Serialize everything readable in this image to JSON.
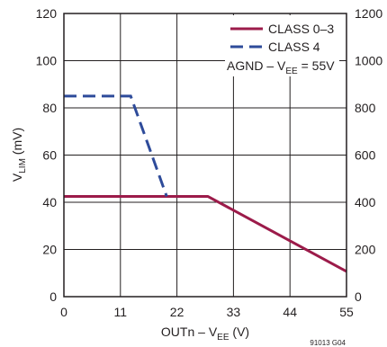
{
  "chart_data": {
    "type": "line",
    "xlabel": "OUTn – V",
    "xlabel_sub": "EE",
    "xlabel_unit": " (V)",
    "ylabel": "V",
    "ylabel_sub": "LIM",
    "ylabel_unit": " (mV)",
    "xlim": [
      0,
      55
    ],
    "ylim": [
      0,
      120
    ],
    "y2lim": [
      0,
      1200
    ],
    "x_ticks": [
      "0",
      "11",
      "22",
      "33",
      "44",
      "55"
    ],
    "y_ticks": [
      "0",
      "20",
      "40",
      "60",
      "80",
      "100",
      "120"
    ],
    "y2_ticks": [
      "0",
      "200",
      "400",
      "600",
      "800",
      "1000",
      "1200"
    ],
    "grid": true,
    "legend_position": "top-right",
    "series": [
      {
        "name": "CLASS 0–3",
        "style": "solid",
        "color": "#9c1b4a",
        "points": [
          [
            0,
            42.5
          ],
          [
            28,
            42.5
          ],
          [
            55,
            10.7
          ]
        ]
      },
      {
        "name": "CLASS 4",
        "style": "dashed",
        "color": "#2e4b9a",
        "points": [
          [
            0,
            85
          ],
          [
            13,
            85
          ],
          [
            20,
            42.5
          ]
        ]
      }
    ],
    "annotation": {
      "prefix": "AGND – V",
      "sub": "EE",
      "suffix": " = 55V"
    },
    "figure_id": "91013 G04"
  }
}
